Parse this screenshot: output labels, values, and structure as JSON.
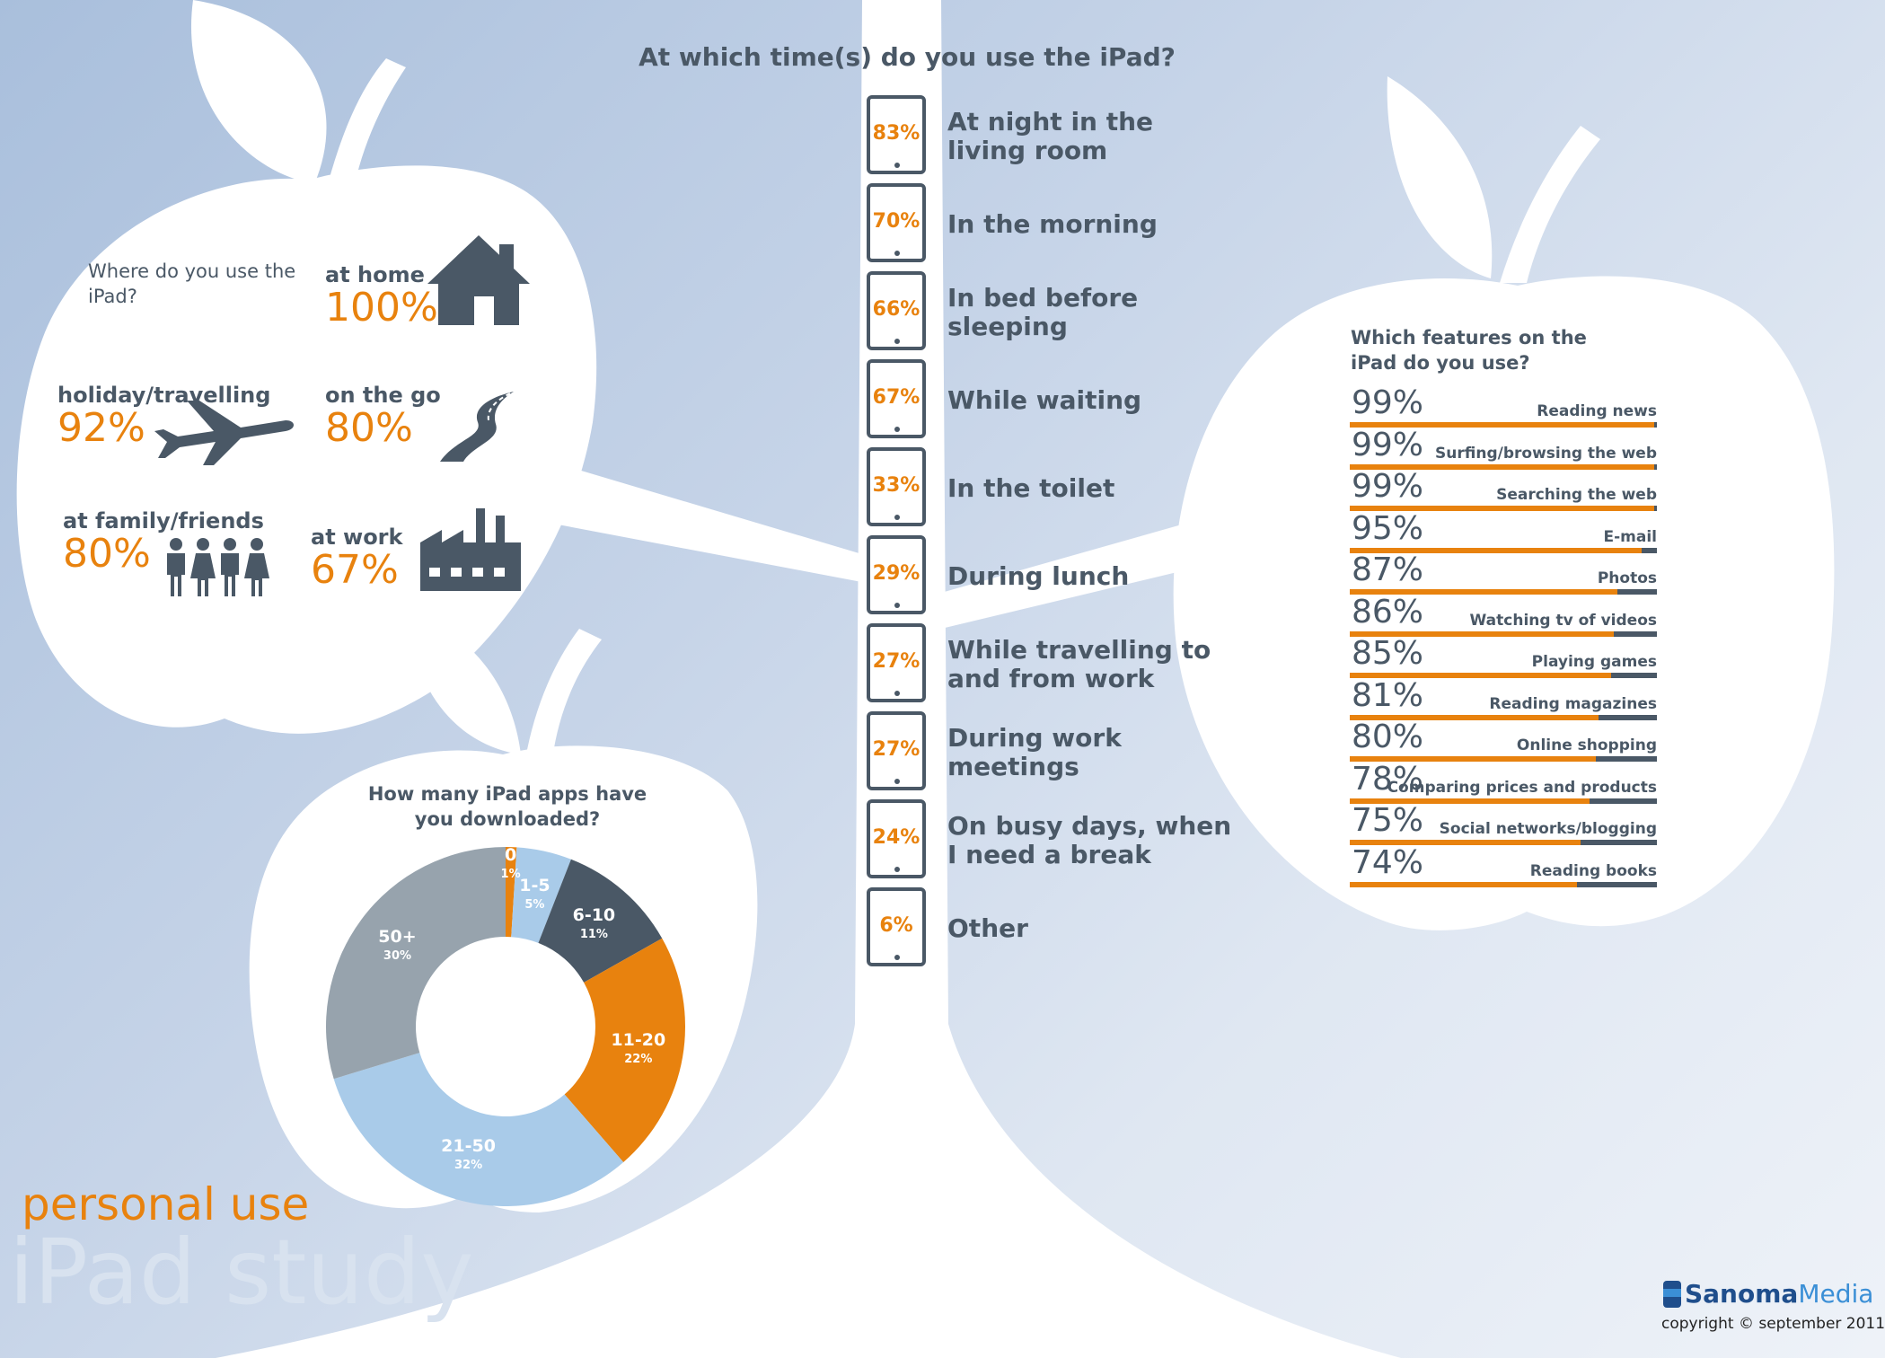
{
  "colors": {
    "orange": "#e8820e",
    "dark": "#4a5866",
    "light_blue": "#a9cbe9",
    "gray": "#97a3ad",
    "white": "#ffffff"
  },
  "places": {
    "question": "Where do you use the iPad?",
    "items": [
      {
        "label": "at home",
        "pct": "100%",
        "icon": "house-icon"
      },
      {
        "label": "holiday/travelling",
        "pct": "92%",
        "icon": "airplane-icon"
      },
      {
        "label": "on the go",
        "pct": "80%",
        "icon": "road-icon"
      },
      {
        "label": "at family/friends",
        "pct": "80%",
        "icon": "family-icon"
      },
      {
        "label": "at work",
        "pct": "67%",
        "icon": "factory-icon"
      }
    ]
  },
  "times": {
    "question": "At which time(s) do you use the iPad?",
    "items": [
      {
        "pct": "83%",
        "label": "At night in the living room"
      },
      {
        "pct": "70%",
        "label": "In the morning"
      },
      {
        "pct": "66%",
        "label": "In bed before sleeping"
      },
      {
        "pct": "67%",
        "label": "While waiting"
      },
      {
        "pct": "33%",
        "label": "In the toilet"
      },
      {
        "pct": "29%",
        "label": "During lunch"
      },
      {
        "pct": "27%",
        "label": "While travelling to and from work"
      },
      {
        "pct": "27%",
        "label": "During work meetings"
      },
      {
        "pct": "24%",
        "label": "On busy days, when I need a break"
      },
      {
        "pct": "6%",
        "label": "Other"
      }
    ]
  },
  "chart_data": [
    {
      "type": "pie",
      "title": "How many iPad apps have you downloaded?",
      "categories": [
        "0",
        "1-5",
        "6-10",
        "11-20",
        "21-50",
        "50+"
      ],
      "values": [
        1,
        5,
        11,
        22,
        32,
        30
      ],
      "value_labels": [
        "1%",
        "5%",
        "11%",
        "22%",
        "32%",
        "30%"
      ],
      "colors": [
        "#e8820e",
        "#a9cbe9",
        "#4a5866",
        "#e8820e",
        "#a9cbe9",
        "#97a3ad"
      ]
    },
    {
      "type": "bar",
      "title": "Which features on the iPad do you use?",
      "categories": [
        "Reading news",
        "Surfing/browsing the web",
        "Searching the web",
        "E-mail",
        "Photos",
        "Watching tv of videos",
        "Playing games",
        "Reading magazines",
        "Online shopping",
        "Comparing prices and products",
        "Social networks/blogging",
        "Reading books"
      ],
      "values": [
        99,
        99,
        99,
        95,
        87,
        86,
        85,
        81,
        80,
        78,
        75,
        74
      ],
      "value_labels": [
        "99%",
        "99%",
        "99%",
        "95%",
        "87%",
        "86%",
        "85%",
        "81%",
        "80%",
        "78%",
        "75%",
        "74%"
      ]
    }
  ],
  "footer": {
    "subtitle": "personal use",
    "title": "iPad study",
    "brand_a": "Sanoma",
    "brand_b": "Media",
    "copyright": "copyright",
    "date": "september 2011"
  }
}
